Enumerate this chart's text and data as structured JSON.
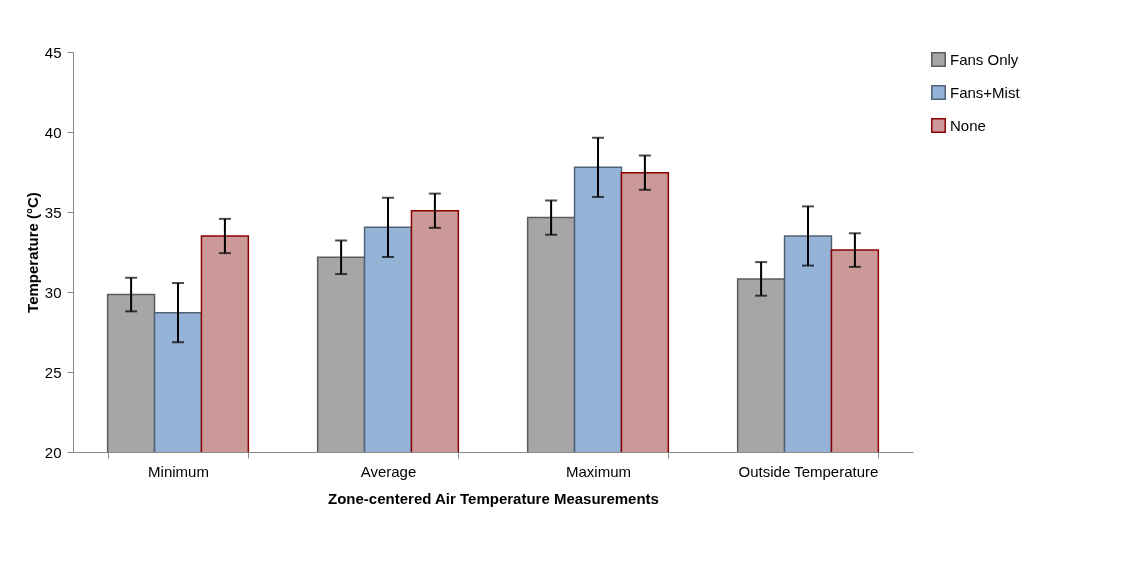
{
  "chart_data": {
    "type": "bar",
    "xlabel": "Zone-centered Air Temperature Measurements",
    "ylabel": "Temperature (°C)",
    "categories": [
      "Minimum",
      "Average",
      "Maximum",
      "Outside Temperature"
    ],
    "series": [
      {
        "name": "Fans Only",
        "color": "#a6a6a6",
        "values": [
          29.84,
          32.17,
          34.65,
          30.82
        ],
        "errors": [
          1.05,
          1.05,
          1.07,
          1.05
        ]
      },
      {
        "name": "Fans+Mist",
        "color": "#95b3d7",
        "values": [
          28.71,
          34.04,
          37.79,
          33.5
        ],
        "errors": [
          1.85,
          1.85,
          1.85,
          1.85
        ]
      },
      {
        "name": "None",
        "color": "#cc9999",
        "values": [
          33.5,
          35.08,
          37.46,
          32.62
        ],
        "errors": [
          1.07,
          1.07,
          1.07,
          1.05
        ]
      }
    ],
    "ylim": [
      20,
      45
    ],
    "yticks": [
      20,
      25,
      30,
      35,
      40,
      45
    ],
    "grid": false,
    "legend": "right"
  }
}
